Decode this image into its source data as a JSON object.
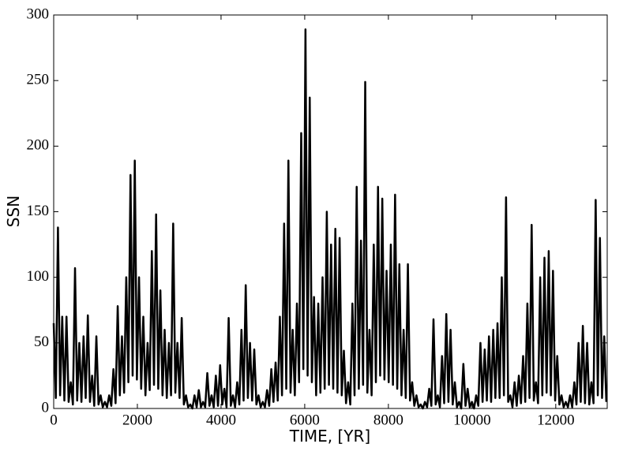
{
  "chart_data": {
    "type": "line",
    "xlabel": "TIME, [YR]",
    "ylabel": "SSN",
    "color": "#000000",
    "xlim": [
      0,
      13230
    ],
    "ylim": [
      0,
      300
    ],
    "xticks": [
      0,
      2000,
      4000,
      6000,
      8000,
      10000,
      12000
    ],
    "yticks": [
      0,
      50,
      100,
      150,
      200,
      250,
      300
    ],
    "x": [
      0,
      51,
      102,
      153,
      204,
      255,
      306,
      357,
      408,
      459,
      510,
      561,
      612,
      663,
      714,
      765,
      816,
      867,
      918,
      969,
      1020,
      1071,
      1122,
      1173,
      1224,
      1275,
      1326,
      1377,
      1428,
      1479,
      1530,
      1581,
      1632,
      1683,
      1734,
      1785,
      1836,
      1887,
      1938,
      1989,
      2040,
      2091,
      2142,
      2193,
      2244,
      2295,
      2346,
      2397,
      2448,
      2499,
      2550,
      2601,
      2652,
      2703,
      2754,
      2805,
      2856,
      2907,
      2958,
      3009,
      3060,
      3111,
      3162,
      3213,
      3264,
      3315,
      3366,
      3417,
      3468,
      3519,
      3570,
      3621,
      3672,
      3723,
      3774,
      3825,
      3876,
      3927,
      3978,
      4029,
      4080,
      4131,
      4182,
      4233,
      4284,
      4335,
      4386,
      4437,
      4488,
      4539,
      4590,
      4641,
      4692,
      4743,
      4794,
      4845,
      4896,
      4947,
      4998,
      5049,
      5100,
      5151,
      5202,
      5253,
      5304,
      5355,
      5406,
      5457,
      5508,
      5559,
      5610,
      5661,
      5712,
      5763,
      5814,
      5865,
      5916,
      5967,
      6018,
      6069,
      6120,
      6171,
      6222,
      6273,
      6324,
      6375,
      6426,
      6477,
      6528,
      6579,
      6630,
      6681,
      6732,
      6783,
      6834,
      6885,
      6936,
      6987,
      7038,
      7089,
      7140,
      7191,
      7242,
      7293,
      7344,
      7395,
      7446,
      7497,
      7548,
      7599,
      7650,
      7701,
      7752,
      7803,
      7854,
      7905,
      7956,
      8007,
      8058,
      8109,
      8160,
      8211,
      8262,
      8313,
      8364,
      8415,
      8466,
      8517,
      8568,
      8619,
      8670,
      8721,
      8772,
      8823,
      8874,
      8925,
      8976,
      9027,
      9078,
      9129,
      9180,
      9231,
      9282,
      9333,
      9384,
      9435,
      9486,
      9537,
      9588,
      9639,
      9690,
      9741,
      9792,
      9843,
      9894,
      9945,
      9996,
      10047,
      10098,
      10149,
      10200,
      10251,
      10302,
      10353,
      10404,
      10455,
      10506,
      10557,
      10608,
      10659,
      10710,
      10761,
      10812,
      10863,
      10914,
      10965,
      11016,
      11067,
      11118,
      11169,
      11220,
      11271,
      11322,
      11373,
      11424,
      11475,
      11526,
      11577,
      11628,
      11679,
      11730,
      11781,
      11832,
      11883,
      11934,
      11985,
      12036,
      12087,
      12138,
      12189,
      12240,
      12291,
      12342,
      12393,
      12444,
      12495,
      12546,
      12597,
      12648,
      12699,
      12750,
      12801,
      12852,
      12903,
      12954,
      13005,
      13056,
      13107,
      13158,
      13209
    ],
    "values": [
      65,
      8,
      138,
      10,
      70,
      6,
      70,
      5,
      20,
      3,
      107,
      6,
      50,
      5,
      55,
      8,
      71,
      5,
      25,
      2,
      55,
      3,
      10,
      1,
      5,
      1,
      10,
      2,
      30,
      4,
      78,
      10,
      55,
      12,
      100,
      20,
      178,
      25,
      189,
      22,
      100,
      15,
      70,
      10,
      50,
      14,
      120,
      18,
      148,
      15,
      90,
      10,
      60,
      8,
      50,
      10,
      141,
      12,
      50,
      8,
      69,
      3,
      10,
      1,
      3,
      0,
      10,
      1,
      14,
      1,
      5,
      1,
      27,
      2,
      10,
      1,
      25,
      2,
      33,
      3,
      15,
      1,
      69,
      2,
      10,
      1,
      20,
      3,
      60,
      6,
      94,
      8,
      50,
      6,
      45,
      3,
      10,
      1,
      5,
      1,
      14,
      2,
      30,
      5,
      35,
      6,
      70,
      10,
      141,
      15,
      189,
      12,
      60,
      10,
      80,
      20,
      210,
      30,
      289,
      25,
      237,
      20,
      85,
      10,
      80,
      12,
      100,
      15,
      150,
      18,
      125,
      15,
      137,
      12,
      130,
      10,
      44,
      4,
      20,
      3,
      80,
      10,
      169,
      15,
      128,
      18,
      249,
      12,
      60,
      10,
      125,
      20,
      169,
      25,
      160,
      22,
      105,
      20,
      125,
      18,
      163,
      15,
      110,
      10,
      60,
      8,
      110,
      6,
      20,
      2,
      10,
      1,
      3,
      0,
      5,
      1,
      15,
      2,
      68,
      3,
      10,
      1,
      40,
      4,
      72,
      5,
      60,
      3,
      20,
      1,
      5,
      0,
      34,
      2,
      15,
      1,
      5,
      0,
      10,
      2,
      50,
      5,
      45,
      6,
      55,
      5,
      60,
      8,
      65,
      8,
      100,
      10,
      161,
      5,
      10,
      1,
      20,
      2,
      25,
      4,
      40,
      5,
      80,
      8,
      140,
      6,
      20,
      4,
      100,
      10,
      115,
      12,
      120,
      10,
      105,
      6,
      40,
      3,
      10,
      1,
      5,
      1,
      10,
      1,
      20,
      3,
      50,
      5,
      63,
      4,
      50,
      3,
      20,
      4,
      159,
      10,
      130,
      8,
      55,
      5
    ]
  }
}
